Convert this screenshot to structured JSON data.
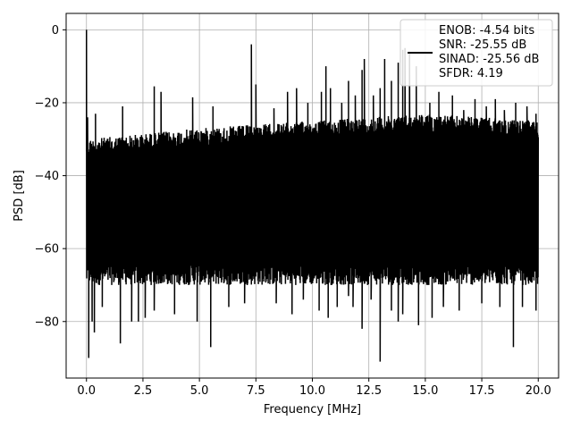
{
  "chart_data": {
    "type": "line",
    "title": "",
    "xlabel": "Frequency [MHz]",
    "ylabel": "PSD [dB]",
    "xlim": [
      -0.9,
      20.9
    ],
    "ylim": [
      -95.5,
      4.5
    ],
    "x_ticks": [
      0.0,
      2.5,
      5.0,
      7.5,
      10.0,
      12.5,
      15.0,
      17.5,
      20.0
    ],
    "x_tick_labels": [
      "0.0",
      "2.5",
      "5.0",
      "7.5",
      "10.0",
      "12.5",
      "15.0",
      "17.5",
      "20.0"
    ],
    "y_ticks": [
      0,
      -20,
      -40,
      -60,
      -80
    ],
    "y_tick_labels": [
      "0",
      "−20",
      "−40",
      "−60",
      "−80"
    ],
    "grid": true,
    "legend": {
      "placement": "top-right",
      "entries": [
        "ENOB: -4.54 bits",
        "SNR: -25.55 dB",
        "SINAD: -25.56 dB",
        "SFDR: 4.19"
      ]
    },
    "series": [
      {
        "color": "#000000",
        "x_range": [
          0.0,
          20.0
        ],
        "noise_floor_band": [
          -70,
          -30
        ],
        "upper_envelope": [
          [
            0.0,
            -30
          ],
          [
            5.0,
            -27
          ],
          [
            10.0,
            -25
          ],
          [
            15.0,
            -23
          ],
          [
            20.0,
            -25
          ]
        ],
        "peaks": [
          [
            0.0,
            0.0
          ],
          [
            0.05,
            -24.0
          ],
          [
            0.4,
            -23.0
          ],
          [
            1.6,
            -21.0
          ],
          [
            3.0,
            -15.5
          ],
          [
            3.3,
            -17.0
          ],
          [
            4.7,
            -18.5
          ],
          [
            5.6,
            -21.0
          ],
          [
            7.3,
            -4.0
          ],
          [
            7.5,
            -15.0
          ],
          [
            8.3,
            -21.5
          ],
          [
            8.9,
            -17.0
          ],
          [
            9.3,
            -16.0
          ],
          [
            9.8,
            -20.0
          ],
          [
            10.4,
            -17.0
          ],
          [
            10.6,
            -10.0
          ],
          [
            10.8,
            -16.0
          ],
          [
            11.3,
            -20.0
          ],
          [
            11.6,
            -14.0
          ],
          [
            11.9,
            -18.0
          ],
          [
            12.2,
            -11.0
          ],
          [
            12.3,
            -8.0
          ],
          [
            12.7,
            -18.0
          ],
          [
            13.0,
            -16.0
          ],
          [
            13.2,
            -8.0
          ],
          [
            13.5,
            -14.0
          ],
          [
            13.8,
            -9.0
          ],
          [
            14.0,
            -5.5
          ],
          [
            14.1,
            -5.0
          ],
          [
            14.3,
            -6.0
          ],
          [
            14.6,
            -10.0
          ],
          [
            15.2,
            -20.0
          ],
          [
            15.6,
            -17.0
          ],
          [
            16.2,
            -18.0
          ],
          [
            16.7,
            -22.0
          ],
          [
            17.2,
            -19.0
          ],
          [
            17.7,
            -21.0
          ],
          [
            18.1,
            -19.0
          ],
          [
            18.5,
            -22.0
          ],
          [
            19.0,
            -20.0
          ],
          [
            19.5,
            -21.0
          ],
          [
            19.9,
            -23.0
          ]
        ],
        "dips": [
          [
            0.1,
            -90.0
          ],
          [
            0.25,
            -80.0
          ],
          [
            0.35,
            -83.0
          ],
          [
            0.7,
            -76.0
          ],
          [
            1.5,
            -86.0
          ],
          [
            2.0,
            -80.0
          ],
          [
            2.3,
            -80.0
          ],
          [
            2.6,
            -79.0
          ],
          [
            3.0,
            -77.0
          ],
          [
            3.9,
            -78.0
          ],
          [
            4.9,
            -80.0
          ],
          [
            5.5,
            -87.0
          ],
          [
            6.3,
            -76.0
          ],
          [
            7.0,
            -75.0
          ],
          [
            8.4,
            -75.0
          ],
          [
            9.1,
            -78.0
          ],
          [
            9.6,
            -74.0
          ],
          [
            10.3,
            -77.0
          ],
          [
            10.7,
            -79.0
          ],
          [
            11.1,
            -76.0
          ],
          [
            11.6,
            -73.0
          ],
          [
            11.8,
            -76.0
          ],
          [
            12.2,
            -82.0
          ],
          [
            12.6,
            -74.0
          ],
          [
            13.0,
            -91.0
          ],
          [
            13.5,
            -77.0
          ],
          [
            13.8,
            -80.0
          ],
          [
            14.0,
            -78.0
          ],
          [
            14.7,
            -81.0
          ],
          [
            15.3,
            -79.0
          ],
          [
            15.8,
            -76.0
          ],
          [
            16.5,
            -77.0
          ],
          [
            17.5,
            -75.0
          ],
          [
            18.3,
            -76.0
          ],
          [
            18.9,
            -87.0
          ],
          [
            19.3,
            -76.0
          ],
          [
            19.9,
            -77.0
          ]
        ]
      }
    ]
  }
}
